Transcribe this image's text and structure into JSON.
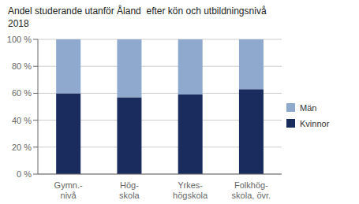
{
  "chart_data": {
    "type": "bar",
    "stacked": true,
    "title": "Andel studerande utanför Åland  efter kön och utbildningsnivå",
    "subtitle": "2018",
    "categories": [
      "Gymn.-\nnivå",
      "Hög-\nskola",
      "Yrkes-\nhögskola",
      "Folkhög-\nskola, övr."
    ],
    "series": [
      {
        "name": "Kvinnor",
        "color": "#1a2b5e",
        "values": [
          60,
          57,
          59,
          63
        ]
      },
      {
        "name": "Män",
        "color": "#8fa8ce",
        "values": [
          40,
          43,
          41,
          37
        ]
      }
    ],
    "ylim": [
      0,
      100
    ],
    "yticks": [
      {
        "value": 0,
        "label": "0 %"
      },
      {
        "value": 20,
        "label": "20 %"
      },
      {
        "value": 40,
        "label": "40 %"
      },
      {
        "value": 60,
        "label": "60 %"
      },
      {
        "value": 80,
        "label": "80 %"
      },
      {
        "value": 100,
        "label": "100 %"
      }
    ],
    "grid": true,
    "legend": "right"
  }
}
